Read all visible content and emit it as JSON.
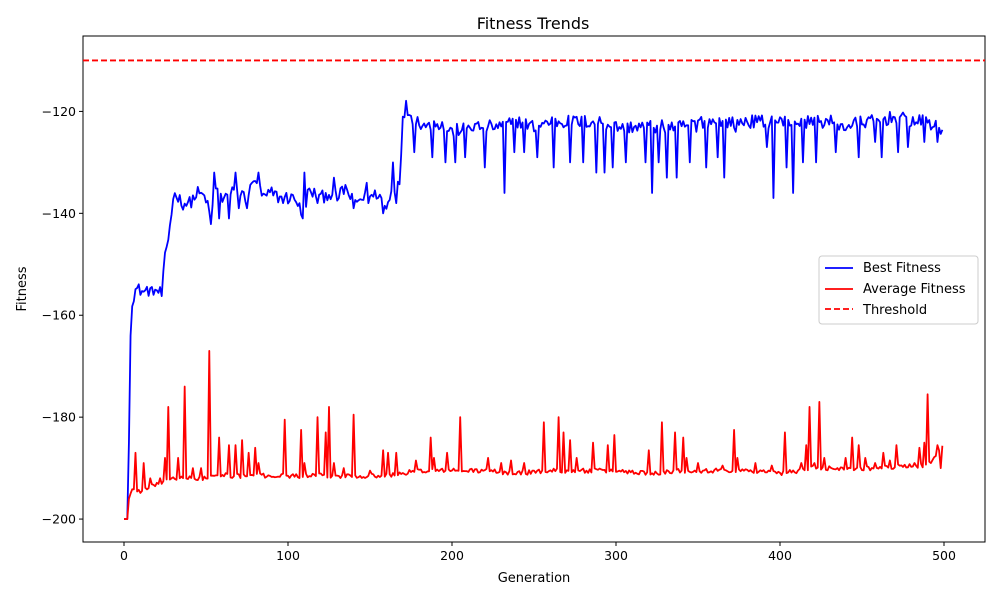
{
  "chart_data": {
    "type": "line",
    "title": "Fitness Trends",
    "xlabel": "Generation",
    "ylabel": "Fitness",
    "xlim": [
      -25,
      525
    ],
    "ylim": [
      -204.5,
      -105.2
    ],
    "xticks": [
      0,
      100,
      200,
      300,
      400,
      500
    ],
    "yticks": [
      -200,
      -180,
      -160,
      -140,
      -120
    ],
    "grid": false,
    "legend_position": "center-right",
    "threshold": {
      "name": "Threshold",
      "value": -110,
      "color": "#ff0000",
      "style": "dashed"
    },
    "series": [
      {
        "name": "Best Fitness",
        "color": "#0000ff",
        "keypoints": [
          [
            0,
            -200
          ],
          [
            2,
            -200
          ],
          [
            3,
            -185
          ],
          [
            4,
            -164
          ],
          [
            5,
            -157
          ],
          [
            7,
            -155
          ],
          [
            10,
            -155
          ],
          [
            12,
            -155.5
          ],
          [
            15,
            -155
          ],
          [
            18,
            -156
          ],
          [
            20,
            -155
          ],
          [
            23,
            -156
          ],
          [
            25,
            -149
          ],
          [
            27,
            -145
          ],
          [
            30,
            -137
          ],
          [
            32,
            -136
          ],
          [
            35,
            -138
          ],
          [
            40,
            -138
          ],
          [
            45,
            -136
          ],
          [
            50,
            -137
          ],
          [
            53,
            -142
          ],
          [
            55,
            -136
          ],
          [
            58,
            -135
          ],
          [
            60,
            -137
          ],
          [
            65,
            -136
          ],
          [
            70,
            -136
          ],
          [
            75,
            -137
          ],
          [
            80,
            -133
          ],
          [
            85,
            -137
          ],
          [
            90,
            -136
          ],
          [
            95,
            -137
          ],
          [
            100,
            -137
          ],
          [
            105,
            -137
          ],
          [
            109,
            -141
          ],
          [
            112,
            -136
          ],
          [
            115,
            -136
          ],
          [
            120,
            -137
          ],
          [
            125,
            -136
          ],
          [
            130,
            -137
          ],
          [
            135,
            -135
          ],
          [
            140,
            -138
          ],
          [
            145,
            -137
          ],
          [
            150,
            -137
          ],
          [
            155,
            -136
          ],
          [
            160,
            -139
          ],
          [
            163,
            -136
          ],
          [
            166,
            -135
          ],
          [
            168,
            -133
          ],
          [
            170,
            -122
          ],
          [
            172,
            -119
          ],
          [
            175,
            -121
          ],
          [
            180,
            -122
          ],
          [
            185,
            -123
          ],
          [
            190,
            -122
          ],
          [
            200,
            -124
          ],
          [
            210,
            -123
          ],
          [
            220,
            -123
          ],
          [
            230,
            -123
          ],
          [
            240,
            -122
          ],
          [
            250,
            -123
          ],
          [
            260,
            -122
          ],
          [
            270,
            -122
          ],
          [
            280,
            -122
          ],
          [
            290,
            -122
          ],
          [
            300,
            -123
          ],
          [
            310,
            -123
          ],
          [
            320,
            -123
          ],
          [
            330,
            -123
          ],
          [
            340,
            -123
          ],
          [
            350,
            -122
          ],
          [
            360,
            -122
          ],
          [
            370,
            -122
          ],
          [
            380,
            -122
          ],
          [
            390,
            -122
          ],
          [
            400,
            -122
          ],
          [
            410,
            -122
          ],
          [
            420,
            -122
          ],
          [
            430,
            -122
          ],
          [
            440,
            -123
          ],
          [
            450,
            -122
          ],
          [
            460,
            -122
          ],
          [
            470,
            -121
          ],
          [
            480,
            -122
          ],
          [
            490,
            -122
          ],
          [
            499,
            -124
          ]
        ],
        "spikes": [
          [
            18,
            -156
          ],
          [
            55,
            -132
          ],
          [
            58,
            -141
          ],
          [
            64,
            -141
          ],
          [
            68,
            -132
          ],
          [
            70,
            -139
          ],
          [
            75,
            -139
          ],
          [
            82,
            -132
          ],
          [
            97,
            -138
          ],
          [
            109,
            -141
          ],
          [
            110,
            -132
          ],
          [
            118,
            -138
          ],
          [
            128,
            -133
          ],
          [
            140,
            -139
          ],
          [
            148,
            -134
          ],
          [
            158,
            -140
          ],
          [
            164,
            -130
          ],
          [
            166,
            -138
          ],
          [
            177,
            -128
          ],
          [
            188,
            -129
          ],
          [
            196,
            -130
          ],
          [
            202,
            -130
          ],
          [
            208,
            -129
          ],
          [
            220,
            -131
          ],
          [
            232,
            -136
          ],
          [
            238,
            -128
          ],
          [
            244,
            -128
          ],
          [
            252,
            -129
          ],
          [
            262,
            -131
          ],
          [
            272,
            -130
          ],
          [
            280,
            -130
          ],
          [
            288,
            -132
          ],
          [
            293,
            -132
          ],
          [
            298,
            -131
          ],
          [
            306,
            -130
          ],
          [
            318,
            -130
          ],
          [
            322,
            -136
          ],
          [
            326,
            -130
          ],
          [
            331,
            -133
          ],
          [
            337,
            -133
          ],
          [
            345,
            -130
          ],
          [
            349,
            -124
          ],
          [
            355,
            -131
          ],
          [
            362,
            -129
          ],
          [
            366,
            -133
          ],
          [
            373,
            -124
          ],
          [
            392,
            -127
          ],
          [
            396,
            -137
          ],
          [
            404,
            -131
          ],
          [
            408,
            -136
          ],
          [
            414,
            -130
          ],
          [
            422,
            -130
          ],
          [
            434,
            -128
          ],
          [
            448,
            -129
          ],
          [
            458,
            -126
          ],
          [
            462,
            -129
          ],
          [
            472,
            -128
          ],
          [
            478,
            -127
          ],
          [
            488,
            -126
          ],
          [
            496,
            -126
          ]
        ]
      },
      {
        "name": "Average Fitness",
        "color": "#ff0000",
        "keypoints": [
          [
            0,
            -200
          ],
          [
            2,
            -200
          ],
          [
            3,
            -196
          ],
          [
            5,
            -194
          ],
          [
            8,
            -194.5
          ],
          [
            10,
            -194.5
          ],
          [
            15,
            -194
          ],
          [
            20,
            -193
          ],
          [
            25,
            -193
          ],
          [
            28,
            -192
          ],
          [
            35,
            -192
          ],
          [
            40,
            -192
          ],
          [
            50,
            -192
          ],
          [
            60,
            -191.5
          ],
          [
            80,
            -191.5
          ],
          [
            100,
            -191.5
          ],
          [
            120,
            -191.5
          ],
          [
            140,
            -191.5
          ],
          [
            160,
            -191.5
          ],
          [
            170,
            -191
          ],
          [
            180,
            -190.5
          ],
          [
            200,
            -190.5
          ],
          [
            220,
            -190.5
          ],
          [
            240,
            -191
          ],
          [
            260,
            -190.5
          ],
          [
            280,
            -190.5
          ],
          [
            300,
            -190.5
          ],
          [
            320,
            -191
          ],
          [
            340,
            -190.5
          ],
          [
            360,
            -190.5
          ],
          [
            380,
            -190.5
          ],
          [
            400,
            -191
          ],
          [
            420,
            -190
          ],
          [
            440,
            -190
          ],
          [
            460,
            -190
          ],
          [
            480,
            -189.5
          ],
          [
            490,
            -189.5
          ],
          [
            499,
            -186
          ]
        ],
        "spikes": [
          [
            7,
            -187
          ],
          [
            12,
            -189
          ],
          [
            16,
            -192
          ],
          [
            22,
            -192
          ],
          [
            25,
            -188
          ],
          [
            27,
            -178
          ],
          [
            33,
            -188
          ],
          [
            37,
            -174
          ],
          [
            42,
            -190
          ],
          [
            47,
            -190
          ],
          [
            52,
            -167
          ],
          [
            58,
            -184
          ],
          [
            62,
            -191
          ],
          [
            64,
            -185.5
          ],
          [
            68,
            -185.5
          ],
          [
            72,
            -184.5
          ],
          [
            76,
            -187
          ],
          [
            80,
            -186
          ],
          [
            82,
            -189
          ],
          [
            98,
            -180.5
          ],
          [
            108,
            -182.5
          ],
          [
            110,
            -189
          ],
          [
            118,
            -180
          ],
          [
            123,
            -183
          ],
          [
            125,
            -178
          ],
          [
            128,
            -189
          ],
          [
            134,
            -190
          ],
          [
            140,
            -179.5
          ],
          [
            150,
            -190.5
          ],
          [
            158,
            -186.5
          ],
          [
            161,
            -187
          ],
          [
            166,
            -187
          ],
          [
            178,
            -188.5
          ],
          [
            187,
            -184
          ],
          [
            189,
            -188
          ],
          [
            197,
            -187
          ],
          [
            205,
            -180
          ],
          [
            222,
            -188
          ],
          [
            230,
            -189
          ],
          [
            236,
            -188.5
          ],
          [
            244,
            -189
          ],
          [
            256,
            -181
          ],
          [
            265,
            -180
          ],
          [
            268,
            -183
          ],
          [
            272,
            -184.5
          ],
          [
            276,
            -188
          ],
          [
            286,
            -185
          ],
          [
            295,
            -185.5
          ],
          [
            299,
            -183.5
          ],
          [
            320,
            -186.5
          ],
          [
            328,
            -181
          ],
          [
            336,
            -183
          ],
          [
            341,
            -184
          ],
          [
            343,
            -188
          ],
          [
            350,
            -189
          ],
          [
            365,
            -189.5
          ],
          [
            372,
            -182.5
          ],
          [
            374,
            -188
          ],
          [
            385,
            -189
          ],
          [
            395,
            -189.5
          ],
          [
            403,
            -183
          ],
          [
            410,
            -191
          ],
          [
            413,
            -189
          ],
          [
            416,
            -185.5
          ],
          [
            418,
            -178
          ],
          [
            421,
            -189
          ],
          [
            424,
            -177
          ],
          [
            427,
            -188
          ],
          [
            440,
            -188
          ],
          [
            444,
            -184
          ],
          [
            448,
            -185.5
          ],
          [
            452,
            -188
          ],
          [
            458,
            -189
          ],
          [
            463,
            -187
          ],
          [
            467,
            -188.5
          ],
          [
            471,
            -185.5
          ],
          [
            482,
            -189
          ],
          [
            485,
            -186
          ],
          [
            488,
            -185
          ],
          [
            490,
            -175.5
          ],
          [
            492,
            -189
          ],
          [
            496,
            -185.5
          ],
          [
            498,
            -190
          ]
        ]
      }
    ]
  }
}
